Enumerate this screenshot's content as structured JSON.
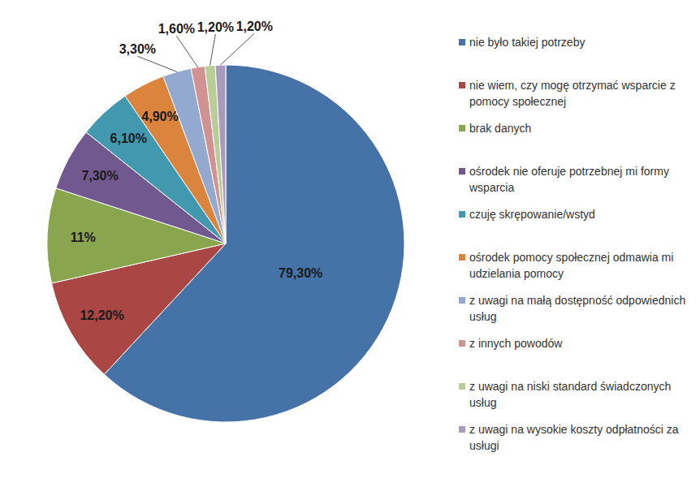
{
  "chart_data": {
    "type": "pie",
    "categories": [
      "nie było takiej potrzeby",
      "nie wiem, czy mogę otrzymać wsparcie z pomocy społecznej",
      "brak danych",
      "ośrodek nie oferuje potrzebnej mi formy wsparcia",
      "czuję skrępowanie/wstyd",
      "ośrodek pomocy społecznej odmawia mi udzielania pomocy",
      "z uwagi na małą dostępność odpowiednich usług",
      "z innych powodów",
      "z uwagi na niski standard świadczonych usług",
      "z uwagi na wysokie koszty odpłatności za usługi"
    ],
    "values": [
      79.3,
      12.2,
      11,
      7.3,
      6.1,
      4.9,
      3.3,
      1.6,
      1.2,
      1.2
    ],
    "value_labels": [
      "79,30%",
      "12,20%",
      "11%",
      "7,30%",
      "6,10%",
      "4,90%",
      "3,30%",
      "1,60%",
      "1,20%",
      "1,20%"
    ],
    "colors": [
      "#4572a7",
      "#aa4643",
      "#89a54e",
      "#71588f",
      "#4198af",
      "#db843d",
      "#93a9cf",
      "#d19392",
      "#b9cd96",
      "#a99bbd"
    ],
    "data_labels": true,
    "legend": "right"
  }
}
